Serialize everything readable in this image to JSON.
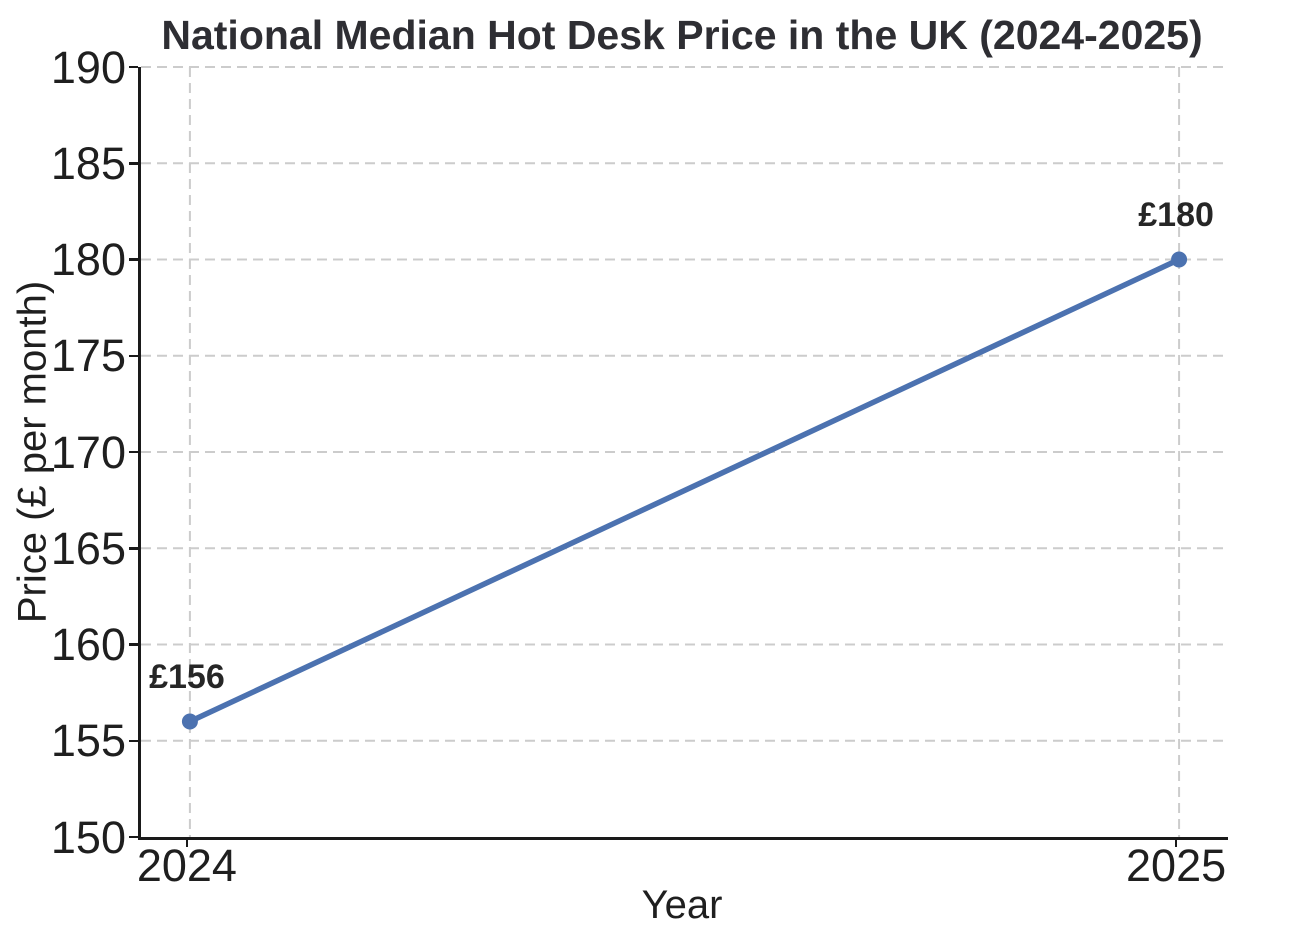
{
  "chart_data": {
    "type": "line",
    "title": "National Median Hot Desk Price in the UK (2024-2025)",
    "xlabel": "Year",
    "ylabel": "Price (£ per month)",
    "categories": [
      "2024",
      "2025"
    ],
    "series": [
      {
        "values": [
          156,
          180
        ],
        "point_labels": [
          "£156",
          "£180"
        ],
        "color": "#4C72B0"
      }
    ],
    "ylim": [
      150,
      190
    ],
    "yticks": [
      150,
      155,
      160,
      165,
      170,
      175,
      180,
      185,
      190
    ],
    "grid": "dashed",
    "grid_color": "#cccccc",
    "axis_color": "#1a1a1a",
    "text_color": "#262626",
    "legend": "none",
    "x_margin_frac": 0.045
  }
}
